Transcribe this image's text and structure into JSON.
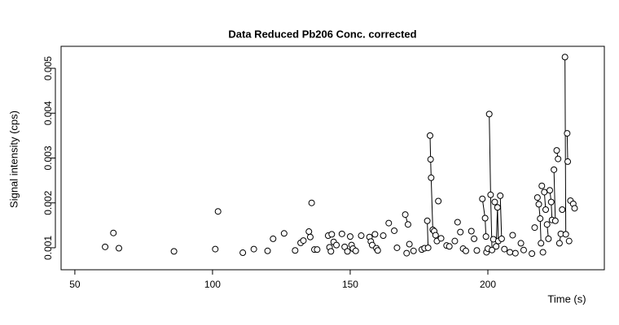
{
  "chart_data": {
    "type": "line",
    "title": "Data Reduced Pb206 Conc. corrected",
    "xlabel": "Time (s)",
    "ylabel": "Signal intensity (cps)",
    "xlim": [
      45,
      242.3
    ],
    "xticks": [
      50,
      100,
      150,
      200
    ],
    "ylim": [
      0.00051,
      0.00549
    ],
    "yticks": [
      0.001,
      0.002,
      0.003,
      0.004,
      0.005
    ],
    "color": "#000000",
    "markers": true,
    "x": [
      61,
      null,
      64,
      null,
      66,
      null,
      86,
      null,
      101,
      null,
      102,
      null,
      111,
      null,
      115,
      null,
      120,
      null,
      122,
      null,
      126,
      null,
      130,
      null,
      132,
      null,
      133,
      null,
      135,
      null,
      135.5,
      null,
      136,
      null,
      137,
      null,
      138,
      null,
      142,
      null,
      142.5,
      null,
      143,
      null,
      143.3,
      null,
      144,
      null,
      145,
      null,
      147,
      null,
      148,
      null,
      149,
      null,
      150,
      null,
      150.5,
      null,
      151,
      null,
      152,
      null,
      154,
      null,
      157,
      null,
      157.5,
      null,
      158,
      null,
      159,
      null,
      159.5,
      null,
      160,
      null,
      162,
      null,
      164,
      null,
      166,
      null,
      167,
      null,
      170,
      171,
      null,
      170.5,
      null,
      171.5,
      null,
      173,
      null,
      176,
      null,
      177,
      null,
      178,
      178.3,
      null,
      179,
      179.2,
      179.4,
      180,
      180.5,
      null,
      181,
      null,
      181.5,
      null,
      182,
      null,
      183,
      null,
      185,
      null,
      186,
      null,
      188,
      null,
      189,
      null,
      190,
      null,
      191,
      null,
      192,
      null,
      194,
      null,
      195,
      null,
      196,
      null,
      198,
      199,
      199.3,
      null,
      199.5,
      null,
      200,
      null,
      200.5,
      201,
      201.5,
      null,
      202,
      null,
      202.5,
      null,
      203,
      203.5,
      203.8,
      null,
      204.5,
      205,
      null,
      206,
      null,
      208,
      null,
      209,
      null,
      210,
      null,
      212,
      null,
      213,
      null,
      216,
      null,
      217,
      null,
      218,
      218.5,
      219,
      219.3,
      null,
      219.6,
      null,
      220,
      null,
      220.5,
      221,
      null,
      221.5,
      222,
      null,
      222.5,
      223,
      223.3,
      null,
      224,
      224.5,
      null,
      225,
      225.5,
      null,
      226,
      226.5,
      null,
      227,
      null,
      228,
      228.3,
      null,
      228.8,
      229,
      null,
      229.5,
      null,
      230,
      231,
      231.5
    ],
    "values": [
      0.00102,
      null,
      0.00133,
      null,
      0.00099,
      null,
      0.00092,
      null,
      0.00097,
      null,
      0.00181,
      null,
      0.00089,
      null,
      0.00097,
      null,
      0.00093,
      null,
      0.0012,
      null,
      0.00132,
      null,
      0.00094,
      null,
      0.00111,
      null,
      0.00116,
      null,
      0.00136,
      null,
      0.00124,
      null,
      0.002,
      null,
      0.00096,
      null,
      0.00096,
      null,
      0.00127,
      null,
      0.00101,
      null,
      0.00092,
      null,
      0.0013,
      null,
      0.00113,
      null,
      0.00106,
      null,
      0.00131,
      null,
      0.00102,
      null,
      0.00092,
      null,
      0.00125,
      null,
      0.00106,
      null,
      0.00098,
      null,
      0.00093,
      null,
      0.00127,
      null,
      0.00124,
      null,
      0.00114,
      null,
      0.00106,
      null,
      0.0013,
      null,
      0.00099,
      null,
      0.00094,
      null,
      0.00127,
      null,
      0.00155,
      null,
      0.00138,
      null,
      0.001,
      null,
      0.00174,
      0.00152,
      null,
      0.00088,
      null,
      0.00108,
      null,
      0.00093,
      null,
      0.00096,
      null,
      0.00099,
      null,
      0.0016,
      0.001,
      null,
      0.0035,
      0.00297,
      0.00256,
      0.0014,
      0.00137,
      null,
      0.00128,
      null,
      0.00115,
      null,
      0.00204,
      null,
      0.00121,
      null,
      0.00105,
      null,
      0.00103,
      null,
      0.00115,
      null,
      0.00157,
      null,
      0.00135,
      null,
      0.00098,
      null,
      0.00093,
      null,
      0.00137,
      null,
      0.0012,
      null,
      0.00094,
      null,
      0.00209,
      0.00166,
      0.00125,
      null,
      0.0009,
      null,
      0.00098,
      null,
      0.00398,
      0.00218,
      0.00095,
      null,
      0.00119,
      null,
      0.00202,
      null,
      0.00103,
      0.0019,
      0.00115,
      null,
      0.00216,
      0.0012,
      null,
      0.00097,
      null,
      0.0009,
      null,
      0.00128,
      null,
      0.00088,
      null,
      0.0011,
      null,
      0.00095,
      null,
      0.00087,
      null,
      0.00145,
      null,
      0.00212,
      0.00197,
      0.00165,
      0.0011,
      null,
      0.00238,
      null,
      0.0009,
      null,
      0.00224,
      0.00185,
      null,
      0.00152,
      0.0012,
      null,
      0.00228,
      0.00202,
      0.00162,
      null,
      0.00274,
      0.0016,
      null,
      0.00317,
      0.00298,
      null,
      0.0011,
      0.00131,
      null,
      0.00185,
      null,
      0.00525,
      0.0013,
      null,
      0.00355,
      0.00292,
      null,
      0.00115,
      null,
      0.00205,
      0.00198,
      0.00188
    ]
  }
}
